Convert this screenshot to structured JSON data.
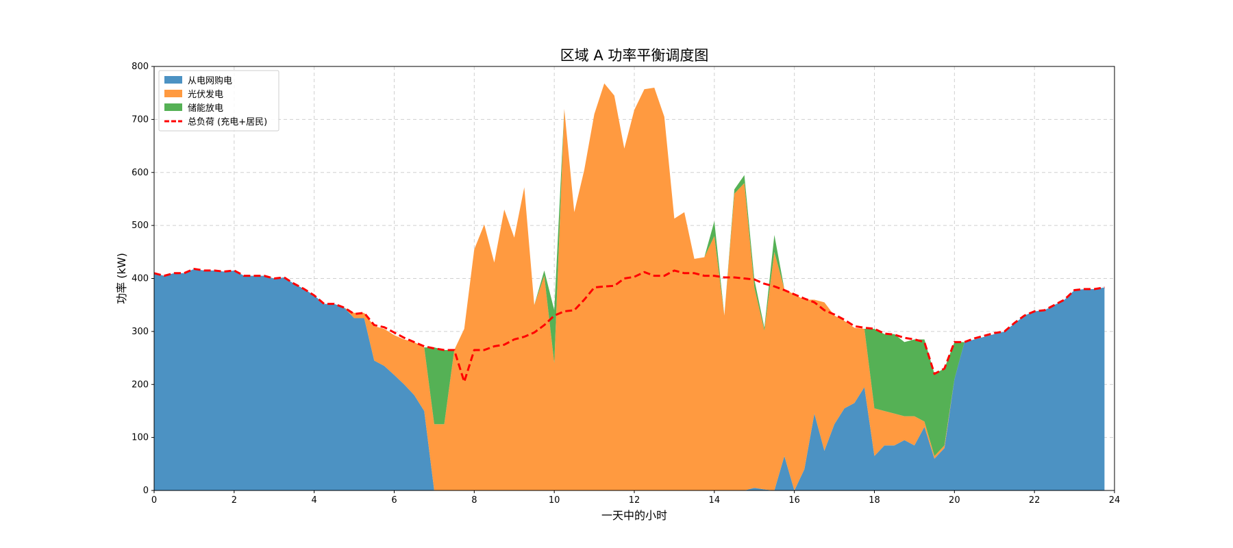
{
  "chart_data": {
    "type": "area",
    "title": "区域 A 功率平衡调度图",
    "xlabel": "一天中的小时",
    "ylabel": "功率 (kW)",
    "xlim": [
      0,
      24
    ],
    "ylim": [
      0,
      800
    ],
    "xticks": [
      0,
      2,
      4,
      6,
      8,
      10,
      12,
      14,
      16,
      18,
      20,
      22,
      24
    ],
    "yticks": [
      0,
      100,
      200,
      300,
      400,
      500,
      600,
      700,
      800
    ],
    "grid": true,
    "legend_position": "upper-left",
    "x": [
      0,
      0.25,
      0.5,
      0.75,
      1,
      1.25,
      1.5,
      1.75,
      2,
      2.25,
      2.5,
      2.75,
      3,
      3.25,
      3.5,
      3.75,
      4,
      4.25,
      4.5,
      4.75,
      5,
      5.25,
      5.5,
      5.75,
      6,
      6.25,
      6.5,
      6.75,
      7,
      7.25,
      7.5,
      7.75,
      8,
      8.25,
      8.5,
      8.75,
      9,
      9.25,
      9.5,
      9.75,
      10,
      10.25,
      10.5,
      10.75,
      11,
      11.25,
      11.5,
      11.75,
      12,
      12.25,
      12.5,
      12.75,
      13,
      13.25,
      13.5,
      13.75,
      14,
      14.25,
      14.5,
      14.75,
      15,
      15.25,
      15.5,
      15.75,
      16,
      16.25,
      16.5,
      16.75,
      17,
      17.25,
      17.5,
      17.75,
      18,
      18.25,
      18.5,
      18.75,
      19,
      19.25,
      19.5,
      19.75,
      20,
      20.25,
      20.5,
      20.75,
      21,
      21.25,
      21.5,
      21.75,
      22,
      22.25,
      22.5,
      22.75,
      23,
      23.25,
      23.5,
      23.75
    ],
    "series": [
      {
        "name": "从电网购电",
        "color": "#4C92C3",
        "values": [
          410,
          405,
          410,
          410,
          418,
          415,
          415,
          413,
          415,
          405,
          405,
          405,
          400,
          402,
          390,
          380,
          368,
          352,
          352,
          345,
          325,
          325,
          245,
          235,
          218,
          200,
          180,
          150,
          0,
          0,
          0,
          0,
          0,
          0,
          0,
          0,
          0,
          0,
          0,
          0,
          0,
          0,
          0,
          0,
          0,
          0,
          0,
          0,
          0,
          0,
          0,
          0,
          0,
          0,
          0,
          0,
          0,
          0,
          0,
          0,
          5,
          2,
          0,
          65,
          0,
          40,
          145,
          75,
          125,
          155,
          165,
          195,
          65,
          85,
          85,
          95,
          85,
          120,
          60,
          80,
          210,
          280,
          285,
          290,
          295,
          300,
          315,
          330,
          338,
          340,
          350,
          360,
          378,
          380,
          380,
          383
        ]
      },
      {
        "name": "光伏发电",
        "color": "#FF9A40",
        "values": [
          0,
          0,
          0,
          0,
          0,
          0,
          0,
          0,
          0,
          0,
          0,
          0,
          0,
          0,
          0,
          0,
          0,
          0,
          0,
          0,
          10,
          10,
          65,
          70,
          75,
          85,
          100,
          120,
          125,
          125,
          265,
          305,
          455,
          502,
          430,
          530,
          477,
          572,
          350,
          405,
          240,
          720,
          525,
          605,
          710,
          768,
          745,
          645,
          718,
          757,
          760,
          705,
          513,
          525,
          437,
          440,
          480,
          330,
          560,
          580,
          378,
          300,
          450,
          315,
          370,
          320,
          215,
          280,
          205,
          165,
          142,
          110,
          90,
          65,
          60,
          45,
          55,
          10,
          5,
          5,
          0,
          0,
          0,
          0,
          0,
          0,
          0,
          0,
          0,
          0,
          0,
          0,
          0,
          0,
          0,
          0
        ]
      },
      {
        "name": "储能放电",
        "color": "#55B155",
        "values": [
          0,
          0,
          0,
          0,
          0,
          0,
          0,
          0,
          0,
          0,
          0,
          0,
          0,
          0,
          0,
          0,
          0,
          0,
          0,
          0,
          0,
          0,
          0,
          0,
          0,
          0,
          0,
          0,
          145,
          140,
          0,
          0,
          0,
          0,
          0,
          0,
          0,
          0,
          0,
          10,
          100,
          0,
          0,
          0,
          0,
          0,
          0,
          0,
          0,
          0,
          0,
          0,
          0,
          0,
          0,
          0,
          28,
          0,
          8,
          15,
          15,
          5,
          32,
          0,
          0,
          0,
          0,
          0,
          0,
          0,
          0,
          0,
          150,
          145,
          150,
          140,
          145,
          155,
          155,
          145,
          70,
          0,
          0,
          0,
          0,
          0,
          0,
          0,
          0,
          0,
          0,
          0,
          0,
          0,
          0,
          0
        ]
      }
    ],
    "load_line": {
      "name": "总负荷 (充电+居民)",
      "color": "#FF0000",
      "values": [
        410,
        405,
        410,
        410,
        418,
        415,
        415,
        413,
        415,
        405,
        405,
        405,
        400,
        402,
        390,
        380,
        368,
        352,
        352,
        345,
        333,
        335,
        312,
        308,
        298,
        288,
        280,
        272,
        268,
        265,
        265,
        205,
        265,
        265,
        272,
        275,
        285,
        290,
        298,
        312,
        330,
        338,
        340,
        360,
        383,
        385,
        386,
        400,
        403,
        412,
        405,
        405,
        415,
        410,
        410,
        405,
        405,
        402,
        402,
        400,
        398,
        390,
        385,
        378,
        370,
        362,
        355,
        340,
        332,
        322,
        310,
        307,
        305,
        296,
        294,
        288,
        285,
        280,
        220,
        230,
        280,
        280,
        287,
        292,
        297,
        300,
        316,
        330,
        338,
        340,
        350,
        360,
        378,
        380,
        380,
        383
      ]
    }
  }
}
